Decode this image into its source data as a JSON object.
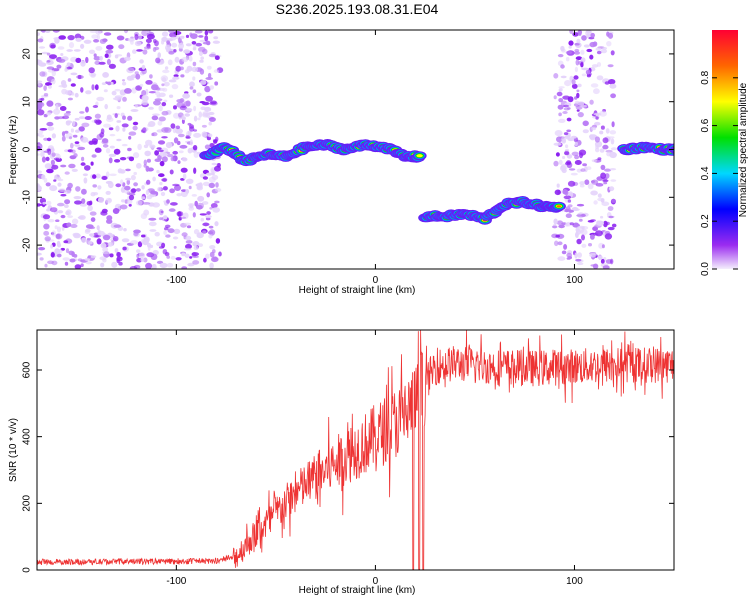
{
  "title": "S236.2025.193.08.31.E04",
  "chart_data": [
    {
      "type": "heatmap",
      "name": "spectrogram",
      "xlabel": "Height of straight line (km)",
      "ylabel": "Frequency (Hz)",
      "xlim": [
        -170,
        150
      ],
      "ylim": [
        -25,
        25
      ],
      "x_ticks": [
        -100,
        0,
        100
      ],
      "y_ticks": [
        -20,
        -10,
        0,
        10,
        20
      ],
      "colorbar": {
        "label": "Normalized spectral amplitude",
        "range": [
          0.0,
          1.0
        ],
        "ticks": [
          "0.0",
          "0.2",
          "0.4",
          "0.6",
          "0.8"
        ]
      },
      "noise_regions": [
        {
          "x_range": [
            -170,
            -78
          ]
        },
        {
          "x_range": [
            90,
            120
          ]
        }
      ],
      "signal_track": [
        {
          "x": -85,
          "freq": -1.5,
          "amp": 0.5
        },
        {
          "x": -75,
          "freq": 0.5,
          "amp": 0.9
        },
        {
          "x": -65,
          "freq": -2.5,
          "amp": 0.8
        },
        {
          "x": -55,
          "freq": -1.0,
          "amp": 0.7
        },
        {
          "x": -45,
          "freq": -1.5,
          "amp": 0.85
        },
        {
          "x": -35,
          "freq": 0.5,
          "amp": 0.8
        },
        {
          "x": -25,
          "freq": 1.0,
          "amp": 0.9
        },
        {
          "x": -15,
          "freq": 0.0,
          "amp": 0.85
        },
        {
          "x": -5,
          "freq": 1.0,
          "amp": 0.9
        },
        {
          "x": 5,
          "freq": 0.5,
          "amp": 0.85
        },
        {
          "x": 15,
          "freq": -1.5,
          "amp": 0.7
        },
        {
          "x": 25,
          "freq": -14.0,
          "amp": 0.85
        },
        {
          "x": 35,
          "freq": -14.0,
          "amp": 0.9
        },
        {
          "x": 45,
          "freq": -13.5,
          "amp": 0.85
        },
        {
          "x": 55,
          "freq": -14.5,
          "amp": 0.9
        },
        {
          "x": 65,
          "freq": -11.5,
          "amp": 0.85
        },
        {
          "x": 75,
          "freq": -11.0,
          "amp": 1.0
        },
        {
          "x": 85,
          "freq": -12.0,
          "amp": 0.85
        },
        {
          "x": 125,
          "freq": 0.0,
          "amp": 0.9
        },
        {
          "x": 135,
          "freq": 0.5,
          "amp": 0.85
        },
        {
          "x": 145,
          "freq": 0.0,
          "amp": 0.9
        }
      ]
    },
    {
      "type": "line",
      "name": "snr",
      "xlabel": "Height of straight line (km)",
      "ylabel": "SNR (10 * v/v)",
      "xlim": [
        -170,
        150
      ],
      "ylim": [
        0,
        720
      ],
      "x_ticks": [
        -100,
        0,
        100
      ],
      "y_ticks": [
        0,
        200,
        400,
        600
      ],
      "color": "#ee3333",
      "trend": [
        {
          "x": -170,
          "y": 22
        },
        {
          "x": -80,
          "y": 25
        },
        {
          "x": -70,
          "y": 40
        },
        {
          "x": -60,
          "y": 110
        },
        {
          "x": -50,
          "y": 170
        },
        {
          "x": -40,
          "y": 230
        },
        {
          "x": -30,
          "y": 280
        },
        {
          "x": -20,
          "y": 320
        },
        {
          "x": -10,
          "y": 360
        },
        {
          "x": 0,
          "y": 400
        },
        {
          "x": 10,
          "y": 440
        },
        {
          "x": 20,
          "y": 500
        },
        {
          "x": 25,
          "y": 560
        },
        {
          "x": 30,
          "y": 610
        },
        {
          "x": 40,
          "y": 620
        },
        {
          "x": 60,
          "y": 610
        },
        {
          "x": 80,
          "y": 605
        },
        {
          "x": 100,
          "y": 610
        },
        {
          "x": 120,
          "y": 615
        },
        {
          "x": 150,
          "y": 615
        }
      ],
      "dropouts": [
        {
          "x": 19,
          "y": 0
        },
        {
          "x": 22,
          "y": 0
        },
        {
          "x": 24,
          "y": 0
        }
      ]
    }
  ]
}
